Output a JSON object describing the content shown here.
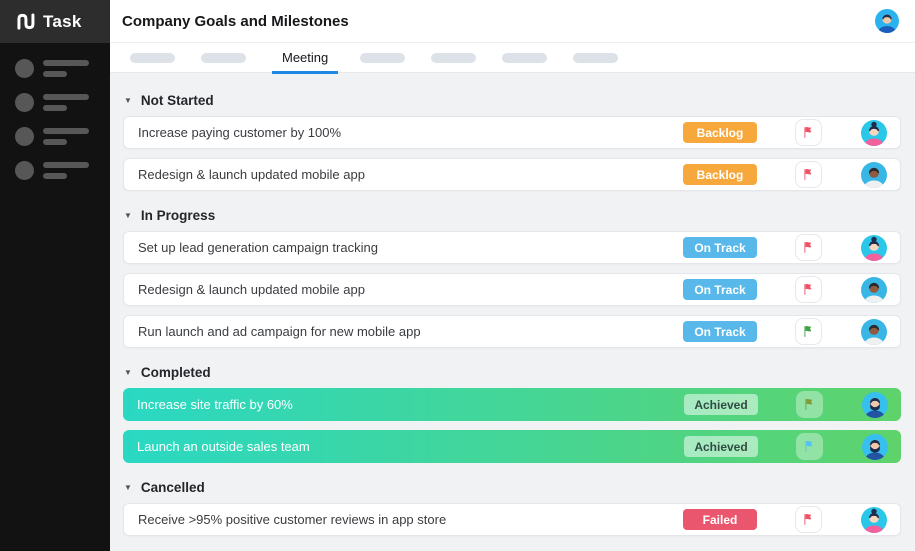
{
  "app": {
    "logo_text": "Task"
  },
  "header": {
    "title": "Company Goals and Milestones"
  },
  "user": {
    "avatar": "header-man"
  },
  "tabs": {
    "active_label": "Meeting",
    "accent": "#1e88e5",
    "skeleton_before": 2,
    "skeleton_after": 4
  },
  "sidebar": {
    "skeleton_items": 4
  },
  "icons": {
    "collapse": "▼"
  },
  "colors": {
    "completed_gradient": [
      "#2ad8c3",
      "#5ed36b"
    ],
    "sidebar_bg": "#121212",
    "logo_bg": "#2d2d2d",
    "content_bg": "#f1f2f4"
  },
  "avatars": {
    "woman-bun": {
      "bg": "#2bc7e8",
      "hair": "#1f2c4d",
      "skin": "#f6d7bd",
      "shirt": "#f2609e",
      "bun": true
    },
    "man-dark": {
      "bg": "#38b6e6",
      "hair": "#262a33",
      "skin": "#8d5b3f",
      "shirt": "#eef0f2"
    },
    "man-beard": {
      "bg": "#36c0ef",
      "hair": "#1d2d4e",
      "skin": "#f0c9a8",
      "shirt": "#2254a3",
      "beard": true
    },
    "header-man": {
      "bg": "#2bb3ef",
      "hair": "#233050",
      "skin": "#f0c9a8",
      "shirt": "#1b5dbd"
    }
  },
  "sections": [
    {
      "title": "Not Started",
      "rows": [
        {
          "task": "Increase paying customer by 100%",
          "status": {
            "label": "Backlog",
            "bg": "#f7a83c",
            "color": "#ffffff"
          },
          "flag": "#ee5168",
          "avatar": "woman-bun",
          "highlight": false
        },
        {
          "task": "Redesign & launch updated mobile app",
          "status": {
            "label": "Backlog",
            "bg": "#f7a83c",
            "color": "#ffffff"
          },
          "flag": "#ee5168",
          "avatar": "man-dark",
          "highlight": false
        }
      ]
    },
    {
      "title": "In Progress",
      "rows": [
        {
          "task": "Set up lead generation campaign tracking",
          "status": {
            "label": "On Track",
            "bg": "#57b8e9",
            "color": "#ffffff"
          },
          "flag": "#ee5168",
          "avatar": "woman-bun",
          "highlight": false
        },
        {
          "task": "Redesign & launch updated mobile app",
          "status": {
            "label": "On Track",
            "bg": "#57b8e9",
            "color": "#ffffff"
          },
          "flag": "#ee5168",
          "avatar": "man-dark",
          "highlight": false
        },
        {
          "task": "Run launch and ad campaign for new mobile app",
          "status": {
            "label": "On Track",
            "bg": "#57b8e9",
            "color": "#ffffff"
          },
          "flag": "#43a047",
          "avatar": "man-dark",
          "highlight": false
        }
      ]
    },
    {
      "title": "Completed",
      "rows": [
        {
          "task": "Increase site traffic by 60%",
          "status": {
            "label": "Achieved",
            "bg": "rgba(255,255,255,0.5)",
            "color": "#2e4d42"
          },
          "flag": "#7d9b36",
          "avatar": "man-beard",
          "highlight": true
        },
        {
          "task": "Launch an outside sales team",
          "status": {
            "label": "Achieved",
            "bg": "rgba(255,255,255,0.5)",
            "color": "#2e4d42"
          },
          "flag": "#4fc3f7",
          "avatar": "man-beard",
          "highlight": true
        }
      ]
    },
    {
      "title": "Cancelled",
      "rows": [
        {
          "task": "Receive >95% positive customer reviews in app store",
          "status": {
            "label": "Failed",
            "bg": "#e9566e",
            "color": "#ffffff"
          },
          "flag": "#ee5168",
          "avatar": "woman-bun",
          "highlight": false
        }
      ]
    }
  ]
}
